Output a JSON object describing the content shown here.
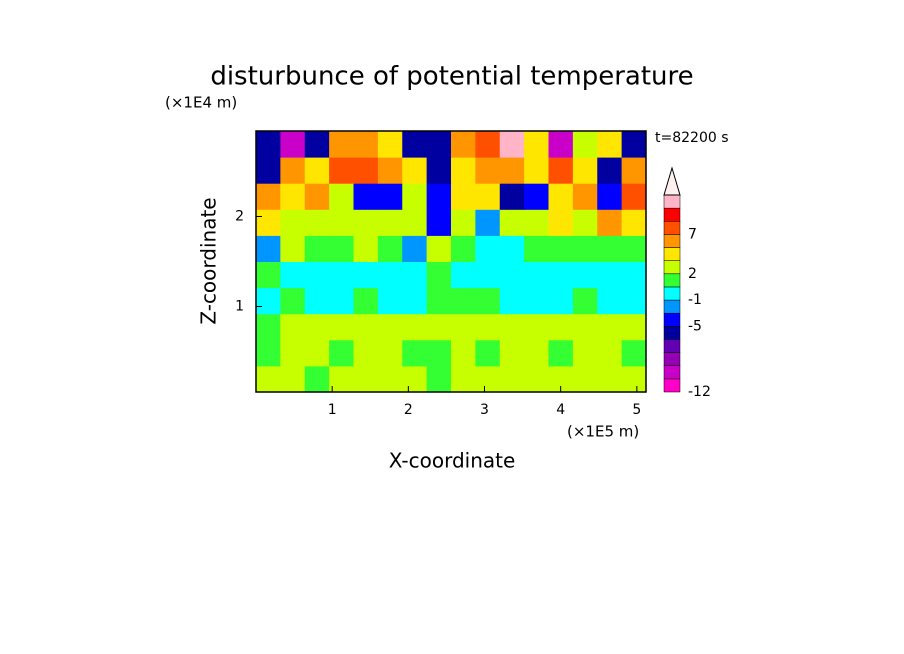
{
  "chart_data": {
    "type": "contour",
    "title": "disturbunce of potential temperature",
    "y_unit": "(×1E4 m)",
    "x_unit": "(×1E5 m)",
    "annotation": "t=82200 s",
    "xlabel": "X-coordinate",
    "ylabel": "Z-coordinate",
    "xlim": [
      0,
      5.12
    ],
    "ylim": [
      0.05,
      2.95
    ],
    "xticks": [
      1,
      2,
      3,
      4,
      5
    ],
    "yticks": [
      1,
      2
    ],
    "levels": [
      -12,
      -10,
      -8,
      -7,
      -6,
      -5,
      -3,
      -1,
      0,
      2,
      3,
      5,
      7,
      9,
      11,
      13
    ],
    "colors": [
      "#ff00c8",
      "#c800c8",
      "#9600b4",
      "#6400b4",
      "#0000a0",
      "#0000ff",
      "#0096ff",
      "#00ffff",
      "#33ff33",
      "#c8ff00",
      "#ffe600",
      "#ff9600",
      "#ff5000",
      "#ff0000",
      "#ffb4c8"
    ],
    "extend_color": "#fff0f0",
    "colorbar_ticks": [
      7,
      2,
      -1,
      -5,
      -12
    ],
    "z": [
      [
        2.5,
        2.5,
        1,
        2.5,
        2.5,
        2.5,
        2.5,
        1,
        2.5,
        2.5,
        2.5,
        2.5,
        2.5,
        2.5,
        2.5,
        2.5
      ],
      [
        1,
        2.5,
        2.5,
        1,
        2.5,
        2.5,
        1,
        1,
        2.5,
        1,
        2.5,
        2.5,
        1,
        2.5,
        2.5,
        1
      ],
      [
        1,
        2.5,
        2.5,
        2.5,
        2.5,
        2.5,
        2.5,
        2.5,
        2.5,
        2.5,
        2.5,
        2.5,
        2.5,
        2.5,
        2.5,
        2.5
      ],
      [
        -0.5,
        1,
        -0.5,
        -0.5,
        1,
        -0.5,
        -0.5,
        1,
        1,
        1,
        -0.5,
        -0.5,
        -0.5,
        1,
        -0.5,
        -0.5
      ],
      [
        1,
        -0.5,
        -0.5,
        -0.5,
        -0.5,
        -0.5,
        -0.5,
        1,
        -0.5,
        -0.5,
        -0.5,
        -0.5,
        -0.5,
        -0.5,
        -0.5,
        -0.5
      ],
      [
        -2,
        2.5,
        1,
        1,
        2.5,
        1,
        -2,
        2.5,
        1,
        -0.5,
        -0.5,
        1,
        1,
        1,
        1,
        1
      ],
      [
        4,
        2.5,
        2.5,
        2.5,
        2.5,
        2.5,
        2.5,
        -4,
        2.5,
        -2,
        2.5,
        2.5,
        4,
        2.5,
        6,
        4
      ],
      [
        6,
        4,
        6,
        2.5,
        -4,
        -4,
        2.5,
        -4,
        4,
        4,
        -6,
        -4,
        4,
        6,
        -4,
        8
      ],
      [
        -6,
        6,
        4,
        8,
        8,
        6,
        4,
        -6,
        4,
        6,
        6,
        4,
        8,
        4,
        -6,
        6
      ],
      [
        -6,
        -9,
        -6,
        6,
        6,
        4,
        -6,
        -6,
        6,
        8,
        12,
        4,
        -9,
        2.5,
        4,
        -6
      ]
    ]
  }
}
